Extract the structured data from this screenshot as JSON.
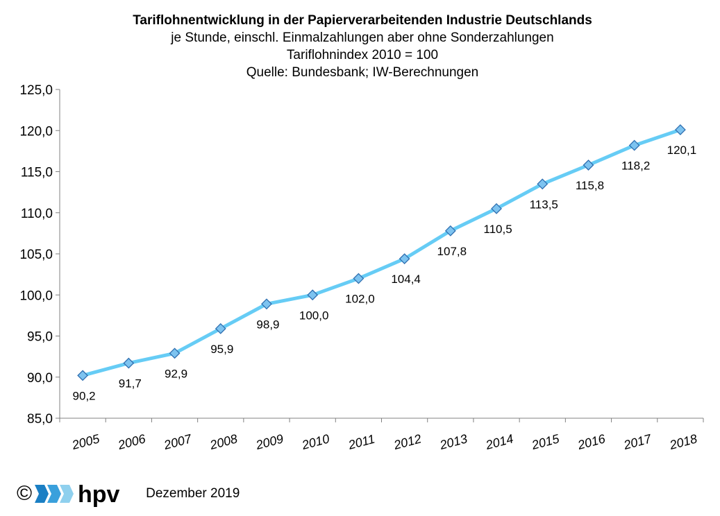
{
  "chart_data": {
    "type": "line",
    "title": "Tariflohnentwicklung in der Papierverarbeitenden Industrie Deutschlands",
    "subtitles": [
      "je Stunde, einschl. Einmalzahlungen aber ohne Sonderzahlungen",
      "Tariflohnindex 2010 = 100",
      "Quelle: Bundesbank; IW-Berechnungen"
    ],
    "categories": [
      "2005",
      "2006",
      "2007",
      "2008",
      "2009",
      "2010",
      "2011",
      "2012",
      "2013",
      "2014",
      "2015",
      "2016",
      "2017",
      "2018"
    ],
    "values": [
      90.2,
      91.7,
      92.9,
      95.9,
      98.9,
      100.0,
      102.0,
      104.4,
      107.8,
      110.5,
      113.5,
      115.8,
      118.2,
      120.1
    ],
    "data_labels": [
      "90,2",
      "91,7",
      "92,9",
      "95,9",
      "98,9",
      "100,0",
      "102,0",
      "104,4",
      "107,8",
      "110,5",
      "113,5",
      "115,8",
      "118,2",
      "120,1"
    ],
    "ylim": [
      85,
      125
    ],
    "yticks": [
      85,
      90,
      95,
      100,
      105,
      110,
      115,
      120,
      125
    ],
    "ytick_labels": [
      "85,0",
      "90,0",
      "95,0",
      "100,0",
      "105,0",
      "110,0",
      "115,0",
      "120,0",
      "125,0"
    ],
    "grid": false,
    "legend": "none",
    "colors": {
      "line": "#66ccf5",
      "marker_fill": "#7dc3f0",
      "marker_stroke": "#2f6fb0",
      "axis": "#808080"
    }
  },
  "footer": {
    "copyright": "©",
    "logo_text": "hpv",
    "date": "Dezember 2019",
    "logo_colors": [
      "#1b7fc4",
      "#3aa0dc",
      "#8fd0ee"
    ]
  }
}
